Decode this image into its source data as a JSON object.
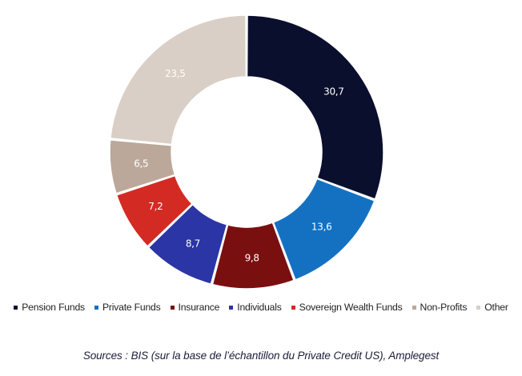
{
  "chart_data": {
    "type": "pie",
    "subtype": "donut",
    "categories": [
      "Pension Funds",
      "Private Funds",
      "Insurance",
      "Individuals",
      "Sovereign Wealth Funds",
      "Non-Profits",
      "Other"
    ],
    "values": [
      30.7,
      13.6,
      9.8,
      8.7,
      7.2,
      6.5,
      23.5
    ],
    "value_labels": [
      "30,7",
      "13,6",
      "9,8",
      "8,7",
      "7,2",
      "6,5",
      "23,5"
    ],
    "colors": [
      "#0b0f2e",
      "#1471c2",
      "#7a0f10",
      "#2b35a5",
      "#d42a24",
      "#bba89a",
      "#d9cfc6"
    ],
    "legend_position": "bottom",
    "title": ""
  },
  "source_text": "Sources : BIS (sur la base de l’échantillon du Private Credit US), Amplegest"
}
